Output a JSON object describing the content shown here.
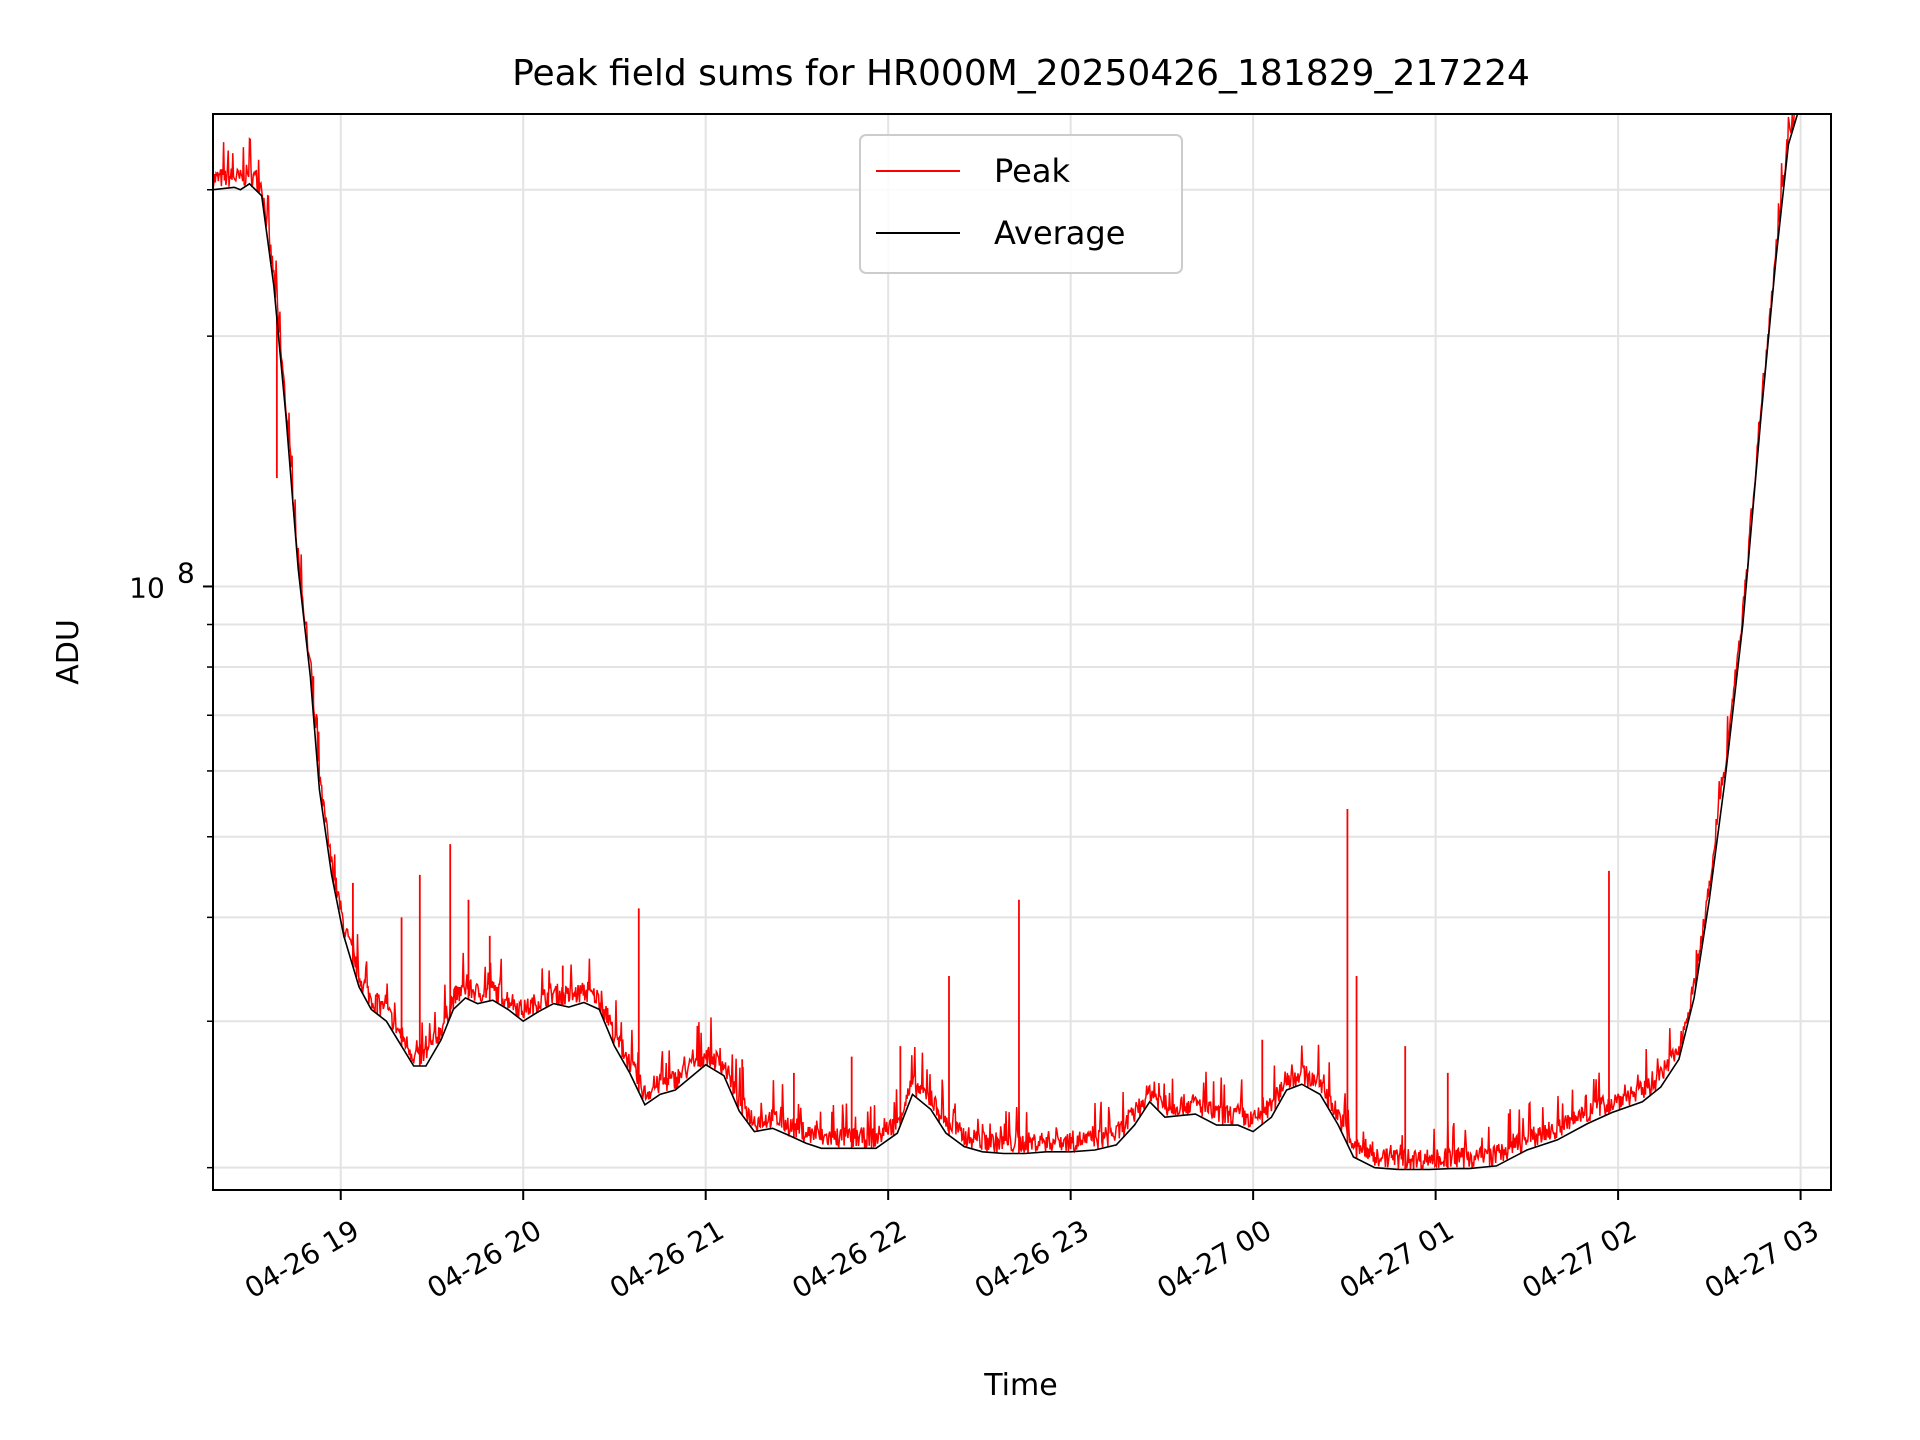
{
  "chart_data": {
    "type": "line",
    "title": "Peak field sums for HR000M_20250426_181829_217224",
    "xlabel": "Time",
    "ylabel": "ADU",
    "y_scale": "log",
    "ylim": [
      18800000,
      370000000
    ],
    "xlim": [
      "04-26 18:18",
      "04-27 03:10"
    ],
    "x_ticks": [
      {
        "value": "04-26 19:00",
        "label": "04-26 19"
      },
      {
        "value": "04-26 20:00",
        "label": "04-26 20"
      },
      {
        "value": "04-26 21:00",
        "label": "04-26 21"
      },
      {
        "value": "04-26 22:00",
        "label": "04-26 22"
      },
      {
        "value": "04-26 23:00",
        "label": "04-26 23"
      },
      {
        "value": "04-27 00:00",
        "label": "04-27 00"
      },
      {
        "value": "04-27 01:00",
        "label": "04-27 01"
      },
      {
        "value": "04-27 02:00",
        "label": "04-27 02"
      },
      {
        "value": "04-27 03:00",
        "label": "04-27 03"
      }
    ],
    "y_ticks": [
      {
        "value": 100000000,
        "base": "10",
        "exp": "8"
      }
    ],
    "grid": true,
    "legend_position": "top-center",
    "colors": {
      "peak": "#ff0000",
      "average": "#000000"
    },
    "series": [
      {
        "name": "Average",
        "x": [
          "04-26 18:18",
          "04-26 18:25",
          "04-26 18:27",
          "04-26 18:30",
          "04-26 18:34",
          "04-26 18:38",
          "04-26 18:42",
          "04-26 18:46",
          "04-26 18:50",
          "04-26 18:53",
          "04-26 18:57",
          "04-26 19:01",
          "04-26 19:06",
          "04-26 19:10",
          "04-26 19:15",
          "04-26 19:20",
          "04-26 19:24",
          "04-26 19:28",
          "04-26 19:33",
          "04-26 19:37",
          "04-26 19:41",
          "04-26 19:45",
          "04-26 19:50",
          "04-26 19:55",
          "04-26 20:00",
          "04-26 20:05",
          "04-26 20:10",
          "04-26 20:15",
          "04-26 20:20",
          "04-26 20:25",
          "04-26 20:30",
          "04-26 20:35",
          "04-26 20:40",
          "04-26 20:45",
          "04-26 20:50",
          "04-26 20:54",
          "04-26 21:00",
          "04-26 21:06",
          "04-26 21:11",
          "04-26 21:16",
          "04-26 21:22",
          "04-26 21:27",
          "04-26 21:33",
          "04-26 21:38",
          "04-26 21:44",
          "04-26 21:50",
          "04-26 21:56",
          "04-26 22:03",
          "04-26 22:08",
          "04-26 22:14",
          "04-26 22:19",
          "04-26 22:25",
          "04-26 22:31",
          "04-26 22:38",
          "04-26 22:45",
          "04-26 22:52",
          "04-26 23:00",
          "04-26 23:08",
          "04-26 23:15",
          "04-26 23:21",
          "04-26 23:26",
          "04-26 23:31",
          "04-26 23:36",
          "04-26 23:41",
          "04-26 23:48",
          "04-26 23:55",
          "04-27 00:00",
          "04-27 00:06",
          "04-27 00:11",
          "04-27 00:16",
          "04-27 00:22",
          "04-27 00:28",
          "04-27 00:33",
          "04-27 00:40",
          "04-27 00:48",
          "04-27 00:58",
          "04-27 01:05",
          "04-27 01:11",
          "04-27 01:20",
          "04-27 01:30",
          "04-27 01:40",
          "04-27 01:50",
          "04-27 01:58",
          "04-27 02:08",
          "04-27 02:14",
          "04-27 02:20",
          "04-27 02:25",
          "04-27 02:30",
          "04-27 02:35",
          "04-27 02:41",
          "04-27 02:47",
          "04-27 02:52",
          "04-27 02:56",
          "04-27 02:59"
        ],
        "values": [
          300000000,
          302000000,
          300000000,
          305000000,
          295000000,
          230000000,
          160000000,
          105000000,
          78000000,
          57000000,
          45000000,
          38000000,
          33000000,
          31000000,
          30000000,
          28000000,
          26500000,
          26500000,
          28500000,
          31000000,
          32000000,
          31500000,
          31800000,
          31000000,
          30000000,
          30800000,
          31500000,
          31200000,
          31600000,
          31000000,
          28000000,
          26000000,
          23800000,
          24500000,
          24800000,
          25500000,
          26600000,
          25800000,
          23400000,
          22100000,
          22300000,
          21900000,
          21400000,
          21100000,
          21100000,
          21100000,
          21100000,
          22000000,
          24500000,
          23500000,
          22000000,
          21200000,
          20900000,
          20800000,
          20800000,
          20900000,
          20900000,
          21000000,
          21300000,
          22500000,
          24000000,
          23000000,
          23100000,
          23200000,
          22500000,
          22500000,
          22100000,
          23000000,
          24800000,
          25200000,
          24500000,
          22500000,
          20600000,
          20000000,
          19900000,
          19900000,
          19950000,
          19950000,
          20100000,
          21000000,
          21600000,
          22600000,
          23300000,
          24000000,
          25000000,
          27000000,
          32000000,
          42000000,
          58000000,
          90000000,
          160000000,
          250000000,
          340000000,
          370000000
        ]
      },
      {
        "name": "Peak",
        "x": [
          "04-26 18:39",
          "04-26 18:51",
          "04-26 19:04",
          "04-26 19:12",
          "04-26 19:20",
          "04-26 19:26",
          "04-26 19:36",
          "04-26 19:42",
          "04-26 19:49",
          "04-26 20:13",
          "04-26 20:38",
          "04-26 21:12",
          "04-26 21:29",
          "04-26 21:48",
          "04-26 22:04",
          "04-26 22:20",
          "04-26 22:43",
          "04-27 00:03",
          "04-27 00:31",
          "04-27 00:34",
          "04-27 00:50",
          "04-27 01:04",
          "04-27 01:57"
        ],
        "values": [
          135000000,
          78000000,
          44000000,
          32000000,
          40000000,
          45000000,
          49000000,
          42000000,
          38000000,
          35000000,
          41000000,
          27000000,
          26000000,
          27200000,
          28000000,
          34000000,
          42000000,
          28500000,
          54000000,
          34000000,
          28000000,
          26000000,
          45500000
        ]
      }
    ]
  },
  "legend": [
    {
      "label": "Peak",
      "color": "#ff0000"
    },
    {
      "label": "Average",
      "color": "#000000"
    }
  ]
}
